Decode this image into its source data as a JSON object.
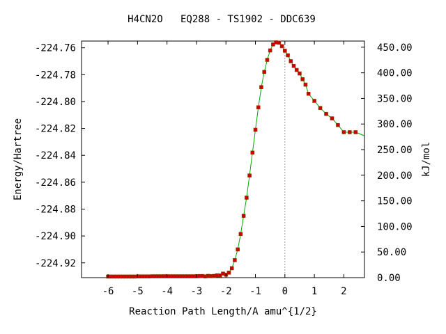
{
  "chart_data": {
    "type": "line",
    "title": "H4CN2O   EQ288 - TS1902 - DDC639",
    "xlabel": "Reaction Path Length/A amu^{1/2}",
    "ylabel": "Energy/Hartree",
    "ylabel_right": "kJ/mol",
    "xlim": [
      -6.9,
      2.7
    ],
    "ylim": [
      -224.931,
      -224.755
    ],
    "ylim_right": [
      0,
      462
    ],
    "x_ticks": [
      -6,
      -5,
      -4,
      -3,
      -2,
      -1,
      0,
      1,
      2
    ],
    "y_ticks": [
      -224.76,
      -224.78,
      -224.8,
      -224.82,
      -224.84,
      -224.86,
      -224.88,
      -224.9,
      -224.92
    ],
    "y_tick_labels": [
      "-224.76",
      "-224.78",
      "-224.80",
      "-224.82",
      "-224.84",
      "-224.86",
      "-224.88",
      "-224.90",
      "-224.92"
    ],
    "y_ticks_right": [
      0,
      50,
      100,
      150,
      200,
      250,
      300,
      350,
      400,
      450
    ],
    "y_tick_labels_right": [
      "0.00",
      "50.00",
      "100.00",
      "150.00",
      "200.00",
      "250.00",
      "300.00",
      "350.00",
      "400.00",
      "450.00"
    ],
    "ts_marker_x": 0,
    "colors": {
      "line": "#00aa00",
      "marker": "#cc0000",
      "marker_edge": "#884400",
      "ts_line": "#999999"
    },
    "series": [
      {
        "x": [
          -6.0,
          -5.9,
          -5.8,
          -5.7,
          -5.6,
          -5.5,
          -5.4,
          -5.3,
          -5.2,
          -5.1,
          -5.0,
          -4.9,
          -4.8,
          -4.7,
          -4.6,
          -4.5,
          -4.4,
          -4.3,
          -4.2,
          -4.1,
          -4.0,
          -3.9,
          -3.8,
          -3.7,
          -3.6,
          -3.5,
          -3.4,
          -3.3,
          -3.2,
          -3.1,
          -3.0,
          -2.9,
          -2.8,
          -2.7,
          -2.6,
          -2.5,
          -2.4,
          -2.3,
          -2.2,
          -2.1,
          -2.0,
          -1.9,
          -1.8,
          -1.7,
          -1.6,
          -1.5,
          -1.4,
          -1.3,
          -1.2,
          -1.1,
          -1.0,
          -0.9,
          -0.8,
          -0.7,
          -0.6,
          -0.5,
          -0.4,
          -0.3,
          -0.2,
          -0.1,
          0.0,
          0.1,
          0.2,
          0.3,
          0.4,
          0.5,
          0.6,
          0.7,
          0.8,
          1.0,
          1.2,
          1.4,
          1.6,
          1.8,
          2.0,
          2.2,
          2.4
        ],
        "y": [
          -224.9302,
          -224.9302,
          -224.9302,
          -224.9302,
          -224.9302,
          -224.9302,
          -224.9302,
          -224.9302,
          -224.9302,
          -224.9302,
          -224.9301,
          -224.9301,
          -224.9301,
          -224.9301,
          -224.9301,
          -224.93,
          -224.93,
          -224.93,
          -224.93,
          -224.93,
          -224.93,
          -224.93,
          -224.93,
          -224.93,
          -224.93,
          -224.93,
          -224.93,
          -224.93,
          -224.93,
          -224.93,
          -224.93,
          -224.9299,
          -224.9298,
          -224.9301,
          -224.9297,
          -224.9299,
          -224.9297,
          -224.9293,
          -224.9294,
          -224.928,
          -224.9288,
          -224.9273,
          -224.924,
          -224.918,
          -224.91,
          -224.8985,
          -224.885,
          -224.8715,
          -224.855,
          -224.838,
          -224.821,
          -224.8043,
          -224.7893,
          -224.778,
          -224.769,
          -224.762,
          -224.7575,
          -224.756,
          -224.7562,
          -224.7588,
          -224.7622,
          -224.7656,
          -224.77,
          -224.7735,
          -224.7765,
          -224.7791,
          -224.7834,
          -224.7874,
          -224.7942,
          -224.7995,
          -224.8048,
          -224.8092,
          -224.8125,
          -224.8175,
          -224.8228,
          -224.8228,
          -224.8228
        ]
      }
    ]
  }
}
